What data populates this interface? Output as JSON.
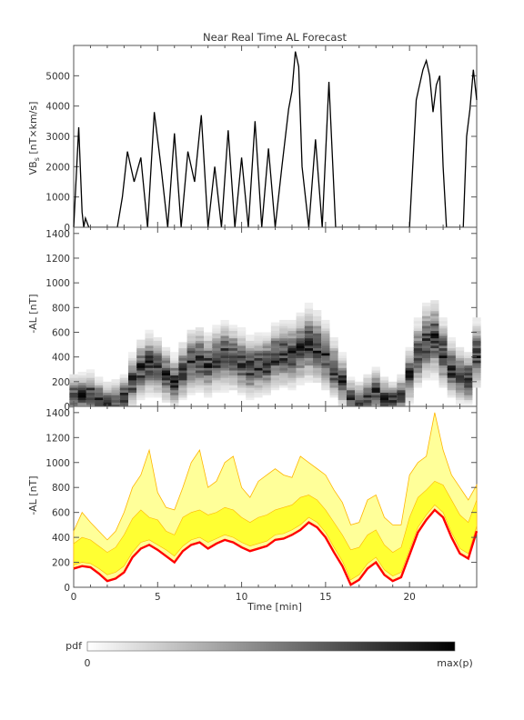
{
  "figure": {
    "title": "Near Real Time AL Forecast"
  },
  "colorbar": {
    "label": "pdf",
    "min_label": "0",
    "max_label": "max(p)"
  },
  "colors": {
    "median_line": "#ff0000",
    "inner_band": "#ffff33",
    "outer_band": "#ffff99",
    "band_edge": "#ffb400",
    "trace": "#000000"
  },
  "chart_data": [
    {
      "type": "line",
      "title": "Near Real Time AL Forecast",
      "ylabel_main": "VB",
      "ylabel_sub": "s",
      "ylabel_units": " [nT×km/s]",
      "xlabel": "",
      "ylim": [
        0,
        6000
      ],
      "xlim": [
        0,
        24
      ],
      "yticks": [
        0,
        1000,
        2000,
        3000,
        4000,
        5000
      ],
      "series": [
        {
          "x": [
            0,
            0.3,
            0.5,
            0.6,
            0.7,
            0.9,
            1.0,
            1.3,
            1.6,
            2.0,
            2.3,
            2.6,
            2.9,
            3.2,
            3.6,
            4.0,
            4.4,
            4.8,
            5.2,
            5.6,
            6.0,
            6.4,
            6.8,
            7.2,
            7.6,
            8.0,
            8.4,
            8.8,
            9.2,
            9.6,
            10.0,
            10.4,
            10.8,
            11.2,
            11.6,
            12.0,
            12.4,
            12.8,
            13.0,
            13.2,
            13.4,
            13.6,
            14.0,
            14.4,
            14.8,
            15.2,
            15.6,
            16.0,
            16.4,
            16.8,
            17.2,
            17.6,
            18.0,
            18.4,
            18.8,
            19.2,
            19.6,
            20.0,
            20.4,
            20.8,
            21.0,
            21.2,
            21.4,
            21.6,
            21.8,
            22.0,
            22.2,
            22.4,
            22.6,
            22.8,
            23.0,
            23.2,
            23.4,
            23.6,
            23.8,
            24.0
          ],
          "y": [
            0,
            3300,
            500,
            0,
            300,
            0,
            0,
            0,
            0,
            0,
            0,
            0,
            1000,
            2500,
            1500,
            2300,
            0,
            3800,
            2000,
            0,
            3100,
            0,
            2500,
            1500,
            3700,
            0,
            2000,
            0,
            3200,
            0,
            2300,
            0,
            3500,
            0,
            2600,
            0,
            2000,
            3900,
            4500,
            5800,
            5300,
            2000,
            0,
            2900,
            0,
            4800,
            0,
            0,
            0,
            0,
            0,
            0,
            0,
            0,
            0,
            0,
            0,
            0,
            4200,
            5200,
            5500,
            5000,
            3800,
            4700,
            5000,
            2000,
            0,
            0,
            0,
            0,
            0,
            0,
            3000,
            3900,
            5200,
            4200
          ]
        }
      ]
    },
    {
      "type": "heatmap",
      "title": "",
      "ylabel": "-AL [nT]",
      "xlabel": "",
      "ylim": [
        0,
        1450
      ],
      "xlim": [
        0,
        24
      ],
      "yticks": [
        0,
        200,
        400,
        600,
        800,
        1000,
        1200,
        1400
      ],
      "series": [
        {
          "x": [
            0,
            0.5,
            1,
            1.5,
            2,
            2.5,
            3,
            3.5,
            4,
            4.5,
            5,
            5.5,
            6,
            6.5,
            7,
            7.5,
            8,
            8.5,
            9,
            9.5,
            10,
            10.5,
            11,
            11.5,
            12,
            12.5,
            13,
            13.5,
            14,
            14.5,
            15,
            15.5,
            16,
            16.5,
            17,
            17.5,
            18,
            18.5,
            19,
            19.5,
            20,
            20.5,
            21,
            21.5,
            22,
            22.5,
            23,
            23.5,
            24
          ],
          "y": [
            80,
            90,
            100,
            60,
            30,
            40,
            80,
            200,
            300,
            340,
            320,
            250,
            200,
            280,
            360,
            380,
            340,
            380,
            410,
            390,
            350,
            310,
            330,
            340,
            400,
            410,
            420,
            460,
            500,
            470,
            400,
            300,
            200,
            60,
            40,
            80,
            120,
            60,
            40,
            80,
            250,
            420,
            520,
            550,
            420,
            300,
            250,
            220,
            420
          ]
        }
      ]
    },
    {
      "type": "area",
      "title": "",
      "ylabel": "-AL [nT]",
      "xlabel": "Time [min]",
      "ylim": [
        0,
        1450
      ],
      "xlim": [
        0,
        24
      ],
      "yticks": [
        0,
        200,
        400,
        600,
        800,
        1000,
        1200,
        1400
      ],
      "xticks": [
        0,
        5,
        10,
        15,
        20
      ],
      "series": [
        {
          "name": "",
          "x": [
            0,
            0.5,
            1,
            1.5,
            2,
            2.5,
            3,
            3.5,
            4,
            4.5,
            5,
            5.5,
            6,
            6.5,
            7,
            7.5,
            8,
            8.5,
            9,
            9.5,
            10,
            10.5,
            11,
            11.5,
            12,
            12.5,
            13,
            13.5,
            14,
            14.5,
            15,
            15.5,
            16,
            16.5,
            17,
            17.5,
            18,
            18.5,
            19,
            19.5,
            20,
            20.5,
            21,
            21.5,
            22,
            22.5,
            23,
            23.5,
            24
          ],
          "median": [
            150,
            170,
            160,
            110,
            50,
            70,
            120,
            240,
            310,
            340,
            300,
            250,
            200,
            290,
            340,
            360,
            310,
            350,
            380,
            360,
            320,
            290,
            310,
            330,
            380,
            390,
            420,
            460,
            520,
            480,
            400,
            280,
            170,
            20,
            60,
            150,
            200,
            100,
            50,
            80,
            260,
            440,
            540,
            620,
            560,
            400,
            270,
            230,
            450
          ],
          "inner_low": [
            180,
            200,
            190,
            150,
            100,
            120,
            170,
            280,
            360,
            380,
            340,
            300,
            250,
            330,
            380,
            400,
            360,
            390,
            420,
            400,
            360,
            330,
            350,
            370,
            420,
            430,
            460,
            500,
            560,
            520,
            440,
            320,
            210,
            60,
            100,
            190,
            240,
            140,
            90,
            120,
            300,
            480,
            580,
            660,
            600,
            440,
            310,
            270,
            490
          ],
          "inner_high": [
            350,
            400,
            380,
            330,
            280,
            320,
            420,
            550,
            620,
            560,
            540,
            450,
            420,
            560,
            600,
            620,
            580,
            600,
            640,
            620,
            560,
            520,
            560,
            580,
            620,
            640,
            660,
            720,
            740,
            700,
            620,
            520,
            420,
            300,
            320,
            420,
            460,
            340,
            280,
            320,
            560,
            720,
            780,
            850,
            820,
            700,
            580,
            520,
            700
          ],
          "outer_high": [
            450,
            600,
            520,
            450,
            380,
            450,
            600,
            800,
            900,
            1100,
            760,
            640,
            620,
            800,
            1000,
            1100,
            800,
            850,
            1000,
            1050,
            800,
            720,
            850,
            900,
            950,
            900,
            880,
            1050,
            1000,
            950,
            900,
            780,
            680,
            500,
            520,
            700,
            740,
            560,
            500,
            500,
            900,
            1000,
            1050,
            1400,
            1100,
            900,
            800,
            700,
            820
          ]
        }
      ]
    }
  ]
}
